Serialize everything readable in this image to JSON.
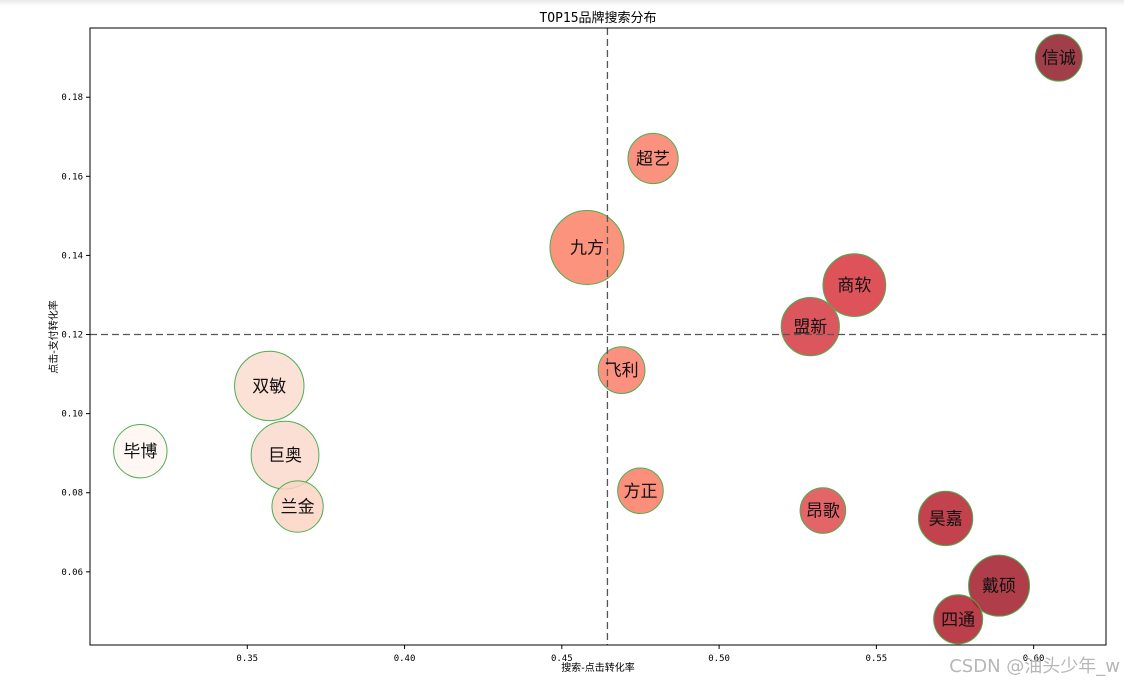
{
  "chart_data": {
    "type": "scatter",
    "title": "TOP15品牌搜索分布",
    "xlabel": "搜索-点击转化率",
    "ylabel": "点击-支付转化率",
    "xlim": [
      0.3,
      0.623
    ],
    "ylim": [
      0.0415,
      0.1975
    ],
    "xticks": [
      0.35,
      0.4,
      0.45,
      0.5,
      0.55,
      0.6
    ],
    "xtick_labels": [
      "0.35",
      "0.40",
      "0.45",
      "0.50",
      "0.55",
      "0.60"
    ],
    "yticks": [
      0.06,
      0.08,
      0.1,
      0.12,
      0.14,
      0.16,
      0.18
    ],
    "ytick_labels": [
      "0.06",
      "0.08",
      "0.10",
      "0.12",
      "0.14",
      "0.16",
      "0.18"
    ],
    "grid": false,
    "reference_lines": {
      "x": 0.4645,
      "y": 0.12
    },
    "bubble_edge_color": "#4caf50",
    "color_scale": [
      "#fff5ee",
      "#fcdcc9",
      "#fa8c6f",
      "#dc4548",
      "#a31f2c"
    ],
    "points": [
      {
        "label": "信诚",
        "x": 0.608,
        "y": 0.19,
        "size": 0.4,
        "color": "#8f1d2a"
      },
      {
        "label": "超艺",
        "x": 0.479,
        "y": 0.1645,
        "size": 0.46,
        "color": "#fa7e68"
      },
      {
        "label": "九方",
        "x": 0.458,
        "y": 0.142,
        "size": 1.0,
        "color": "#fb8066"
      },
      {
        "label": "商软",
        "x": 0.543,
        "y": 0.1325,
        "size": 0.72,
        "color": "#d8353d"
      },
      {
        "label": "盟新",
        "x": 0.529,
        "y": 0.122,
        "size": 0.62,
        "color": "#d63a41"
      },
      {
        "label": "飞利",
        "x": 0.469,
        "y": 0.111,
        "size": 0.4,
        "color": "#fb7e6a"
      },
      {
        "label": "双敏",
        "x": 0.357,
        "y": 0.107,
        "size": 0.88,
        "color": "#fcdcd0"
      },
      {
        "label": "毕博",
        "x": 0.316,
        "y": 0.0905,
        "size": 0.52,
        "color": "#fff6f1"
      },
      {
        "label": "巨奥",
        "x": 0.362,
        "y": 0.0895,
        "size": 0.84,
        "color": "#fcd9cc"
      },
      {
        "label": "方正",
        "x": 0.475,
        "y": 0.0805,
        "size": 0.38,
        "color": "#fb7b64"
      },
      {
        "label": "兰金",
        "x": 0.366,
        "y": 0.0765,
        "size": 0.48,
        "color": "#fcd5c4"
      },
      {
        "label": "昂歌",
        "x": 0.533,
        "y": 0.0755,
        "size": 0.38,
        "color": "#df4a4d"
      },
      {
        "label": "昊嘉",
        "x": 0.572,
        "y": 0.0735,
        "size": 0.54,
        "color": "#b7222e"
      },
      {
        "label": "戴硕",
        "x": 0.589,
        "y": 0.0565,
        "size": 0.68,
        "color": "#a21b2a"
      },
      {
        "label": "四通",
        "x": 0.576,
        "y": 0.048,
        "size": 0.44,
        "color": "#af1f2d"
      }
    ]
  },
  "watermark": "CSDN @油头少年_w"
}
